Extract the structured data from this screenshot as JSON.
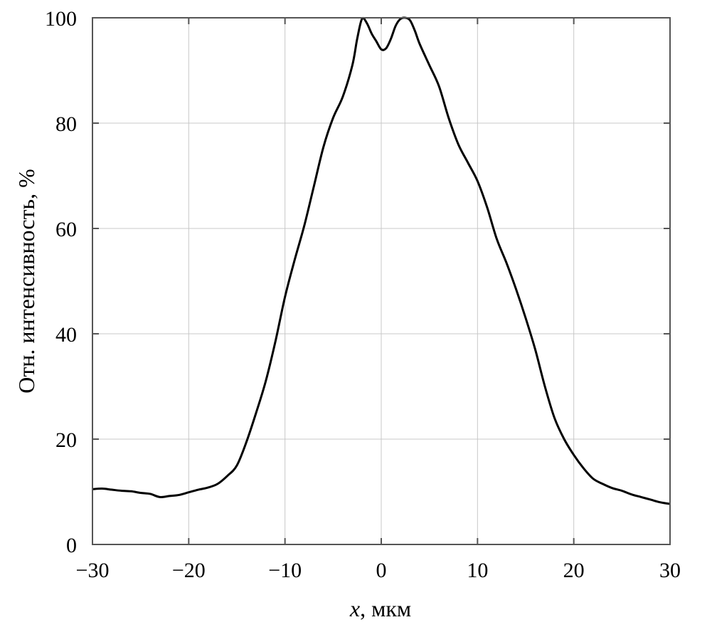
{
  "chart_data": {
    "type": "line",
    "title": "",
    "xlabel_var": "x",
    "xlabel_unit": ", мкм",
    "ylabel": "Отн. интенсивность, %",
    "xlim": [
      -30,
      30
    ],
    "ylim": [
      0,
      100
    ],
    "xticks": [
      -30,
      -20,
      -10,
      0,
      10,
      20,
      30
    ],
    "yticks": [
      0,
      20,
      40,
      60,
      80,
      100
    ],
    "xtick_labels": [
      "−30",
      "−20",
      "−10",
      "0",
      "10",
      "20",
      "30"
    ],
    "ytick_labels": [
      "0",
      "20",
      "40",
      "60",
      "80",
      "100"
    ],
    "grid": true,
    "line_color": "#000000",
    "grid_color": "#c8c8c8",
    "series": [
      {
        "x": [
          -30,
          -29,
          -28,
          -27,
          -26,
          -25,
          -24,
          -23,
          -22,
          -21,
          -20,
          -19,
          -18,
          -17,
          -16,
          -15,
          -14,
          -13,
          -12,
          -11,
          -10,
          -9,
          -8,
          -7,
          -6,
          -5,
          -4,
          -3,
          -2.5,
          -2,
          -1.5,
          -1,
          -0.5,
          0,
          0.5,
          1,
          1.5,
          2,
          2.5,
          3,
          3.5,
          4,
          5,
          6,
          7,
          8,
          9,
          10,
          11,
          12,
          13,
          14,
          15,
          16,
          17,
          18,
          19,
          20,
          21,
          22,
          23,
          24,
          25,
          26,
          27,
          28,
          29,
          30
        ],
        "y": [
          10.5,
          10.6,
          10.4,
          10.2,
          10.1,
          9.8,
          9.6,
          9.0,
          9.2,
          9.4,
          9.9,
          10.4,
          10.8,
          11.5,
          13.0,
          15.0,
          19.5,
          25.0,
          31.0,
          38.5,
          47.0,
          54.0,
          60.5,
          68.0,
          75.5,
          81.0,
          85.0,
          91.0,
          96.0,
          99.8,
          99.0,
          97.0,
          95.5,
          94.0,
          94.2,
          96.0,
          98.5,
          99.8,
          100.0,
          99.5,
          97.5,
          95.0,
          91.0,
          87.0,
          81.0,
          76.0,
          72.5,
          69.0,
          64.0,
          58.0,
          53.5,
          48.5,
          43.0,
          37.0,
          30.0,
          24.0,
          20.0,
          17.0,
          14.5,
          12.5,
          11.5,
          10.7,
          10.2,
          9.5,
          9.0,
          8.5,
          8.0,
          7.7
        ]
      }
    ]
  }
}
